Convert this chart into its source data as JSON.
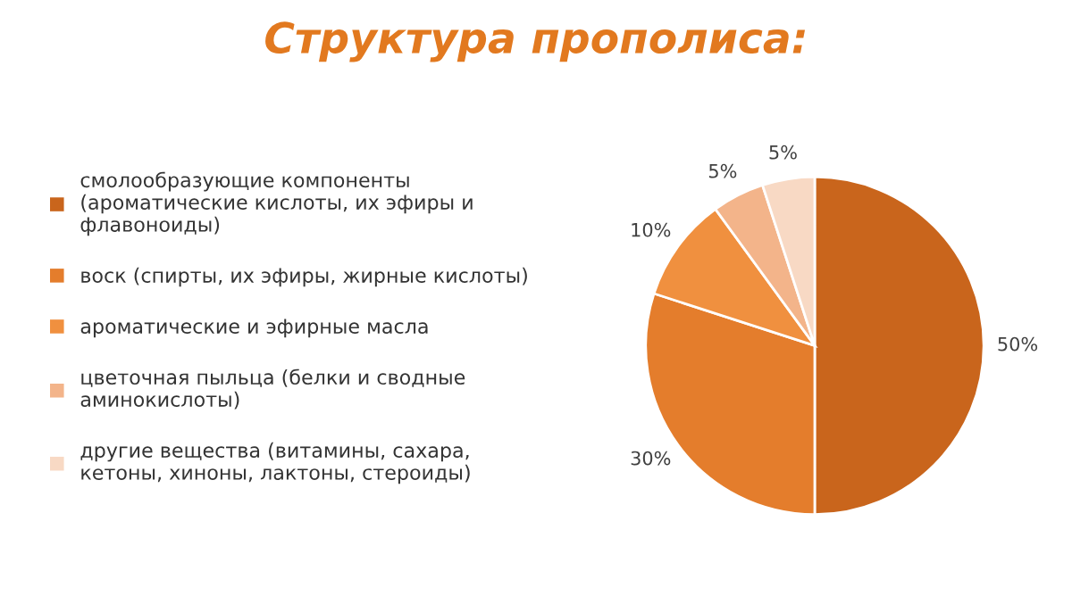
{
  "chart_data": {
    "type": "pie",
    "title": "Структура прополиса:",
    "categories": [
      "смолообразующие компоненты\n(ароматические кислоты, их эфиры и\nфлавоноиды)",
      "воск (спирты, их эфиры, жирные кислоты)",
      "ароматические и эфирные масла",
      "цветочная пыльца (белки и сводные\nаминокислоты)",
      "другие вещества (витамины, сахара,\nкетоны, хиноны, лактоны, стероиды)"
    ],
    "values": [
      50,
      30,
      10,
      5,
      5
    ],
    "colors": [
      "#c9651c",
      "#e47d2c",
      "#f0903f",
      "#f3b48a",
      "#f8d9c4"
    ],
    "value_labels": [
      "50%",
      "30%",
      "10%",
      "5%",
      "5%"
    ],
    "legend": "left"
  }
}
